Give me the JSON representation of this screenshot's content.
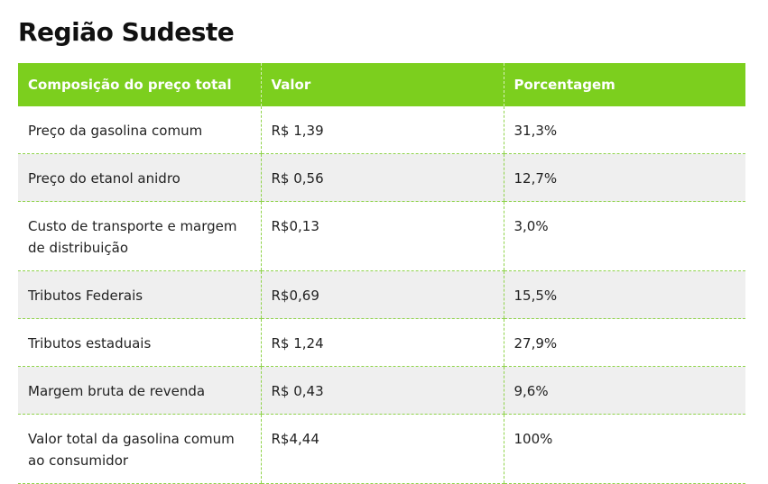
{
  "title": "Região Sudeste",
  "table": {
    "headers": [
      "Composição do preço total",
      "Valor",
      "Porcentagem"
    ],
    "rows": [
      [
        "Preço da gasolina comum",
        "R$ 1,39",
        "31,3%"
      ],
      [
        "Preço do etanol anidro",
        "R$ 0,56",
        "12,7%"
      ],
      [
        "Custo de transporte e margem de distribuição",
        "R$0,13",
        "3,0%"
      ],
      [
        "Tributos Federais",
        "R$0,69",
        "15,5%"
      ],
      [
        "Tributos estaduais",
        "R$ 1,24",
        "27,9%"
      ],
      [
        "Margem bruta de revenda",
        "R$ 0,43",
        "9,6%"
      ],
      [
        "Valor total da gasolina comum ao consumidor",
        "R$4,44",
        "100%"
      ]
    ]
  }
}
